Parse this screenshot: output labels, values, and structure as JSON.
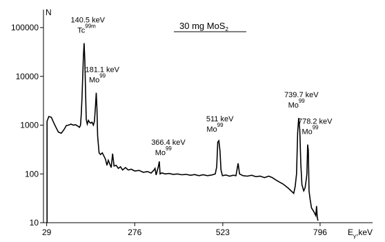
{
  "chart_data": {
    "type": "line",
    "title_main": "30 mg MoS",
    "title_sub": "2",
    "ylabel": "N",
    "xlabel_main": "E",
    "xlabel_sub": "γ",
    "xlabel_unit": ",keV",
    "yscale": "log",
    "ylim": [
      10,
      100000
    ],
    "xlim": [
      20,
      920
    ],
    "grid": false,
    "x_ticks": [
      "29",
      "276",
      "523",
      "796"
    ],
    "y_ticks": [
      "10",
      "100",
      "1000",
      "10000",
      "100000"
    ],
    "peaks": [
      {
        "energy": "140.5 keV",
        "nuclide": "Tc",
        "mass": "99m",
        "x": 140.5,
        "y": 48000
      },
      {
        "energy": "181.1 keV",
        "nuclide": "Mo",
        "mass": "99",
        "x": 181.1,
        "y": 4600
      },
      {
        "energy": "366.4 keV",
        "nuclide": "Mo",
        "mass": "99",
        "x": 366.4,
        "y": 150
      },
      {
        "energy": "511 keV",
        "nuclide": "Mo",
        "mass": "99",
        "x": 511,
        "y": 450
      },
      {
        "energy": "739.7 keV",
        "nuclide": "Mo",
        "mass": "99",
        "x": 739.7,
        "y": 1400
      },
      {
        "energy": "778.2 keV",
        "nuclide": "Mo",
        "mass": "99",
        "x": 778.2,
        "y": 400
      }
    ],
    "series": [
      {
        "values": [
          [
            30,
            1200
          ],
          [
            35,
            1500
          ],
          [
            42,
            1450
          ],
          [
            48,
            1150
          ],
          [
            55,
            900
          ],
          [
            62,
            720
          ],
          [
            70,
            680
          ],
          [
            78,
            820
          ],
          [
            84,
            980
          ],
          [
            90,
            1000
          ],
          [
            97,
            1050
          ],
          [
            104,
            1000
          ],
          [
            110,
            1020
          ],
          [
            116,
            960
          ],
          [
            121,
            900
          ],
          [
            124,
            1000
          ],
          [
            126,
            1700
          ],
          [
            128,
            3500
          ],
          [
            130,
            9000
          ],
          [
            132,
            26000
          ],
          [
            134,
            48000
          ],
          [
            136,
            22000
          ],
          [
            138,
            5000
          ],
          [
            140,
            1300
          ],
          [
            143,
            1050
          ],
          [
            146,
            1250
          ],
          [
            149,
            1150
          ],
          [
            152,
            1100
          ],
          [
            156,
            1150
          ],
          [
            160,
            1000
          ],
          [
            163,
            1200
          ],
          [
            166,
            2500
          ],
          [
            168,
            4600
          ],
          [
            170,
            2200
          ],
          [
            172,
            600
          ],
          [
            176,
            270
          ],
          [
            180,
            250
          ],
          [
            185,
            270
          ],
          [
            190,
            230
          ],
          [
            194,
            200
          ],
          [
            198,
            150
          ],
          [
            202,
            190
          ],
          [
            206,
            160
          ],
          [
            210,
            135
          ],
          [
            214,
            260
          ],
          [
            218,
            145
          ],
          [
            224,
            150
          ],
          [
            230,
            130
          ],
          [
            236,
            140
          ],
          [
            242,
            120
          ],
          [
            250,
            135
          ],
          [
            258,
            120
          ],
          [
            266,
            125
          ],
          [
            276,
            115
          ],
          [
            288,
            118
          ],
          [
            300,
            108
          ],
          [
            312,
            112
          ],
          [
            322,
            104
          ],
          [
            330,
            120
          ],
          [
            333,
            130
          ],
          [
            336,
            95
          ],
          [
            342,
            140
          ],
          [
            345,
            180
          ],
          [
            347,
            100
          ],
          [
            352,
            105
          ],
          [
            362,
            100
          ],
          [
            372,
            102
          ],
          [
            384,
            98
          ],
          [
            396,
            100
          ],
          [
            408,
            96
          ],
          [
            420,
            98
          ],
          [
            432,
            94
          ],
          [
            444,
            97
          ],
          [
            456,
            92
          ],
          [
            468,
            96
          ],
          [
            480,
            92
          ],
          [
            492,
            95
          ],
          [
            502,
            100
          ],
          [
            506,
            140
          ],
          [
            509,
            450
          ],
          [
            512,
            480
          ],
          [
            515,
            300
          ],
          [
            518,
            120
          ],
          [
            522,
            92
          ],
          [
            532,
            95
          ],
          [
            542,
            90
          ],
          [
            552,
            94
          ],
          [
            560,
            92
          ],
          [
            566,
            165
          ],
          [
            570,
            100
          ],
          [
            580,
            92
          ],
          [
            592,
            90
          ],
          [
            604,
            94
          ],
          [
            616,
            88
          ],
          [
            628,
            90
          ],
          [
            640,
            84
          ],
          [
            652,
            90
          ],
          [
            662,
            84
          ],
          [
            672,
            75
          ],
          [
            682,
            68
          ],
          [
            692,
            62
          ],
          [
            700,
            56
          ],
          [
            708,
            50
          ],
          [
            716,
            44
          ],
          [
            722,
            40
          ],
          [
            726,
            55
          ],
          [
            730,
            100
          ],
          [
            733,
            700
          ],
          [
            736,
            1400
          ],
          [
            739,
            800
          ],
          [
            742,
            160
          ],
          [
            745,
            60
          ],
          [
            750,
            45
          ],
          [
            754,
            52
          ],
          [
            757,
            75
          ],
          [
            759,
            100
          ],
          [
            761,
            400
          ],
          [
            763,
            300
          ],
          [
            765,
            45
          ],
          [
            768,
            30
          ],
          [
            772,
            20
          ],
          [
            776,
            18
          ],
          [
            780,
            16
          ],
          [
            784,
            14
          ],
          [
            786,
            22
          ],
          [
            788,
            13
          ],
          [
            790,
            11
          ]
        ]
      }
    ]
  }
}
